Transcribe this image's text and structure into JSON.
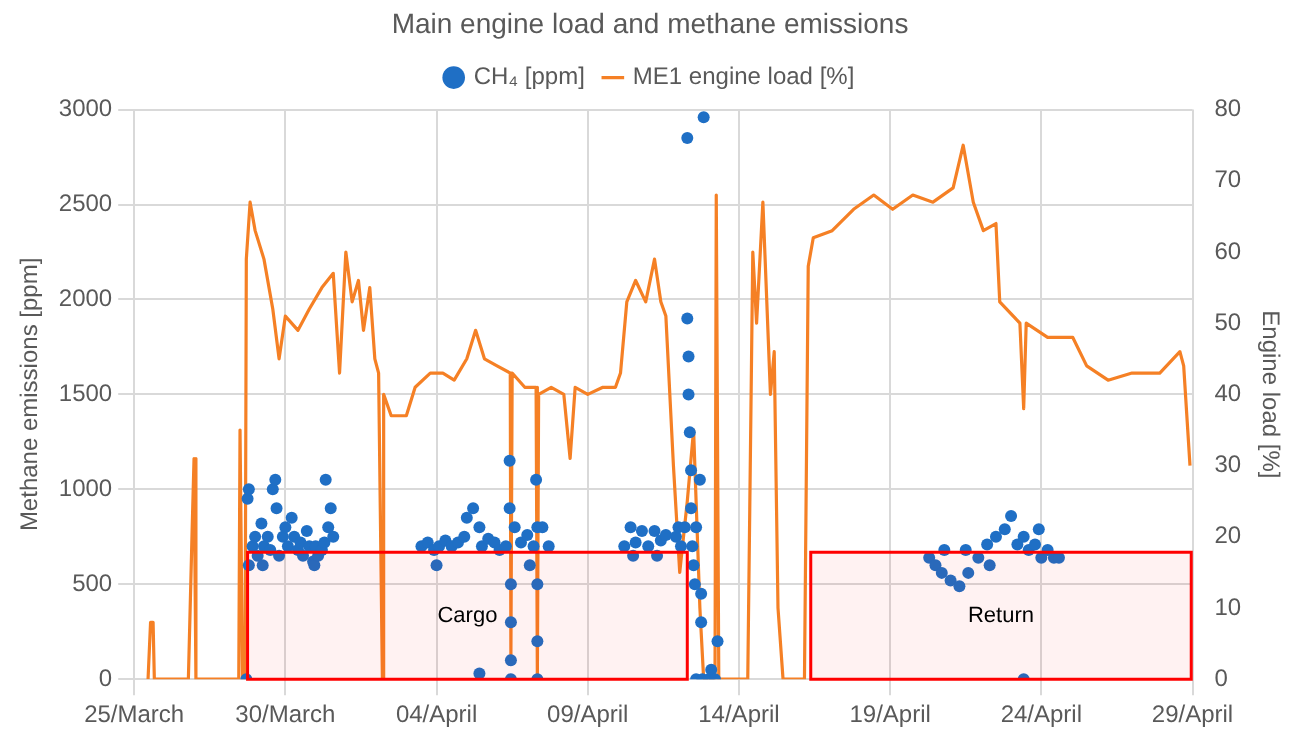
{
  "chart_data": {
    "type": "scatter",
    "title": "Main engine load and methane emissions",
    "ylabel": "Methane emissions [ppm]",
    "y2label": "Engine load [%]",
    "xlim": [
      "--03-25",
      "--04-29"
    ],
    "xticks": [
      {
        "value": "--03-25",
        "label": "25/March"
      },
      {
        "value": "--03-30",
        "label": "30/March"
      },
      {
        "value": "--04-04",
        "label": "04/April"
      },
      {
        "value": "--04-09",
        "label": "09/April"
      },
      {
        "value": "--04-14",
        "label": "14/April"
      },
      {
        "value": "--04-19",
        "label": "19/April"
      },
      {
        "value": "--04-24",
        "label": "24/April"
      },
      {
        "value": "--04-29",
        "label": "29/April"
      }
    ],
    "ylim": [
      0,
      3000
    ],
    "yticks": [
      0,
      500,
      1000,
      1500,
      2000,
      2500,
      3000
    ],
    "y2lim": [
      0,
      80
    ],
    "y2ticks": [
      0,
      10,
      20,
      30,
      40,
      50,
      60,
      70,
      80
    ],
    "grid": true,
    "legend": "top",
    "bands": [
      {
        "axis": "x",
        "from": "--03-28T18:00",
        "to": "--04-12T07:00",
        "label": "Cargo",
        "color": "#ff0000"
      },
      {
        "axis": "x",
        "from": "--04-16T09:00",
        "to": "--04-28T23:00",
        "label": "Return",
        "color": "#ff0000"
      }
    ],
    "series": [
      {
        "name": "CH₄ [ppm]",
        "marker": "circle",
        "color": "#1f6fc5",
        "x": [
          "--03-28T17:00",
          "--03-28T18:00",
          "--03-28T19:00",
          "--03-28T19:00",
          "--03-28T22:00",
          "--03-29T00:00",
          "--03-29T02:00",
          "--03-29T05:00",
          "--03-29T06:00",
          "--03-29T07:00",
          "--03-29T10:00",
          "--03-29T12:00",
          "--03-29T14:00",
          "--03-29T16:00",
          "--03-29T17:00",
          "--03-29T19:00",
          "--03-29T22:00",
          "--03-30T00:00",
          "--03-30T02:00",
          "--03-30T05:00",
          "--03-30T07:00",
          "--03-30T10:00",
          "--03-30T12:00",
          "--03-30T14:00",
          "--03-30T17:00",
          "--03-30T19:00",
          "--03-30T22:00",
          "--03-30T23:00",
          "--03-31T00:00",
          "--03-31T02:00",
          "--03-31T05:00",
          "--03-31T07:00",
          "--03-31T08:00",
          "--03-31T10:00",
          "--03-31T12:00",
          "--03-31T14:00",
          "--04-03T12:00",
          "--04-03T17:00",
          "--04-03T22:00",
          "--04-04T00:00",
          "--04-04T02:00",
          "--04-04T07:00",
          "--04-04T12:00",
          "--04-04T17:00",
          "--04-04T22:00",
          "--04-05T00:00",
          "--04-05T05:00",
          "--04-05T10:00",
          "--04-05T10:00",
          "--04-05T12:00",
          "--04-05T17:00",
          "--04-05T22:00",
          "--04-06T02:00",
          "--04-06T07:00",
          "--04-06T10:00",
          "--04-06T10:00",
          "--04-06T11:00",
          "--04-06T11:00",
          "--04-06T11:00",
          "--04-06T11:00",
          "--04-06T14:00",
          "--04-06T19:00",
          "--04-07T00:00",
          "--04-07T02:00",
          "--04-07T05:00",
          "--04-07T07:00",
          "--04-07T08:00",
          "--04-07T08:00",
          "--04-07T08:00",
          "--04-07T08:00",
          "--04-07T12:00",
          "--04-07T17:00",
          "--04-10T05:00",
          "--04-10T10:00",
          "--04-10T12:00",
          "--04-10T14:00",
          "--04-10T19:00",
          "--04-11T00:00",
          "--04-11T05:00",
          "--04-11T07:00",
          "--04-11T10:00",
          "--04-11T14:00",
          "--04-11T22:00",
          "--04-12T00:00",
          "--04-12T02:00",
          "--04-12T05:00",
          "--04-12T07:00",
          "--04-12T07:00",
          "--04-12T08:00",
          "--04-12T08:00",
          "--04-12T09:00",
          "--04-12T10:00",
          "--04-12T10:00",
          "--04-12T11:00",
          "--04-12T12:00",
          "--04-12T13:00",
          "--04-12T14:00",
          "--04-12T14:00",
          "--04-12T17:00",
          "--04-12T18:00",
          "--04-12T18:00",
          "--04-12T19:00",
          "--04-12T20:00",
          "--04-13T00:00",
          "--04-13T02:00",
          "--04-13T05:00",
          "--04-13T07:00",
          "--04-20T07:00",
          "--04-20T12:00",
          "--04-20T17:00",
          "--04-20T19:00",
          "--04-21T00:00",
          "--04-21T07:00",
          "--04-21T12:00",
          "--04-21T14:00",
          "--04-21T22:00",
          "--04-22T05:00",
          "--04-22T07:00",
          "--04-22T12:00",
          "--04-22T19:00",
          "--04-23T00:00",
          "--04-23T05:00",
          "--04-23T10:00",
          "--04-23T10:00",
          "--04-23T14:00",
          "--04-23T19:00",
          "--04-23T22:00",
          "--04-24T00:00",
          "--04-24T05:00",
          "--04-24T10:00",
          "--04-24T14:00"
        ],
        "values": [
          0,
          950,
          600,
          1000,
          700,
          750,
          650,
          820,
          600,
          700,
          750,
          680,
          1000,
          1050,
          900,
          650,
          750,
          800,
          700,
          850,
          750,
          680,
          720,
          650,
          780,
          700,
          620,
          600,
          700,
          650,
          680,
          720,
          1050,
          800,
          900,
          750,
          700,
          720,
          680,
          600,
          700,
          730,
          700,
          720,
          750,
          850,
          900,
          800,
          30,
          700,
          740,
          720,
          680,
          700,
          1150,
          900,
          500,
          0,
          300,
          100,
          800,
          720,
          760,
          600,
          700,
          1050,
          800,
          500,
          200,
          0,
          800,
          700,
          700,
          800,
          650,
          720,
          780,
          700,
          780,
          650,
          730,
          760,
          750,
          800,
          700,
          800,
          2850,
          1900,
          1700,
          1500,
          1300,
          1100,
          900,
          700,
          600,
          500,
          800,
          0,
          1050,
          300,
          450,
          0,
          2960,
          0,
          50,
          0,
          200,
          640,
          600,
          560,
          680,
          520,
          490,
          680,
          560,
          640,
          710,
          600,
          750,
          790,
          860,
          710,
          750,
          0,
          680,
          710,
          790,
          640,
          680,
          640,
          640
        ]
      },
      {
        "name": "ME1 engine load [%]",
        "type": "line",
        "axis": "y2",
        "marker": "none",
        "color": "#f58025",
        "x": [
          "--03-25T11:00",
          "--03-25T13:00",
          "--03-25T15:00",
          "--03-25T16:00",
          "--03-26T19:00",
          "--03-26T22:00",
          "--03-26T23:30",
          "--03-27T01:00",
          "--03-28T11:00",
          "--03-28T12:00",
          "--03-28T14:00",
          "--03-28T16:00",
          "--03-28T17:00",
          "--03-28T20:00",
          "--03-29T00:00",
          "--03-29T07:00",
          "--03-29T14:00",
          "--03-29T19:00",
          "--03-30T00:00",
          "--03-30T10:00",
          "--03-30T19:00",
          "--03-31T05:00",
          "--03-31T14:00",
          "--03-31T19:00",
          "--04-01T00:00",
          "--04-01T05:00",
          "--04-01T10:00",
          "--04-01T14:00",
          "--04-01T19:00",
          "--04-01T23:00",
          "--04-02T02:00",
          "--04-02T05:00",
          "--04-02T06:00",
          "--04-02T12:00",
          "--04-03T00:00",
          "--04-03T07:00",
          "--04-03T19:00",
          "--04-04T05:00",
          "--04-04T14:00",
          "--04-05T00:00",
          "--04-05T07:00",
          "--04-05T14:00",
          "--04-06T00:00",
          "--04-06T10:30",
          "--04-06T11:00",
          "--04-06T12:00",
          "--04-06T22:00",
          "--04-07T07:00",
          "--04-07T08:00",
          "--04-07T09:00",
          "--04-07T19:00",
          "--04-08T05:00",
          "--04-08T10:00",
          "--04-08T14:00",
          "--04-09T00:00",
          "--04-09T12:00",
          "--04-09T22:00",
          "--04-10T02:00",
          "--04-10T07:00",
          "--04-10T14:00",
          "--04-10T22:00",
          "--04-11T05:00",
          "--04-11T10:00",
          "--04-11T14:00",
          "--04-11T20:00",
          "--04-12T01:00",
          "--04-12T07:00",
          "--04-12T12:00",
          "--04-12T17:00",
          "--04-12T20:00",
          "--04-13T05:00",
          "--04-13T06:00",
          "--04-13T08:00",
          "--04-14T07:00",
          "--04-14T11:00",
          "--04-14T14:00",
          "--04-14T19:00",
          "--04-15T01:00",
          "--04-15T04:00",
          "--04-15T07:00",
          "--04-15T11:00",
          "--04-16T04:00",
          "--04-16T07:00",
          "--04-16T11:00",
          "--04-17T02:00",
          "--04-17T19:00",
          "--04-18T11:00",
          "--04-19T02:00",
          "--04-19T18:00",
          "--04-20T10:00",
          "--04-21T02:00",
          "--04-21T10:00",
          "--04-21T18:00",
          "--04-22T02:00",
          "--04-22T12:00",
          "--04-22T15:00",
          "--04-23T07:00",
          "--04-23T10:00",
          "--04-23T12:00",
          "--04-24T05:00",
          "--04-25T01:00",
          "--04-25T12:00",
          "--04-26T05:00",
          "--04-27T00:00",
          "--04-27T22:00",
          "--04-28T14:00",
          "--04-28T17:00",
          "--04-28T22:00"
        ],
        "values": [
          0,
          8,
          8,
          0,
          0,
          21,
          31,
          0,
          0,
          35,
          0,
          0,
          59,
          67,
          63,
          59,
          52,
          45,
          51,
          49,
          52,
          55,
          57,
          43,
          60,
          53,
          56,
          49,
          55,
          45,
          43,
          0,
          40,
          37,
          37,
          41,
          43,
          43,
          42,
          45,
          49,
          45,
          44,
          43,
          3,
          43,
          41,
          41,
          0,
          40,
          41,
          40,
          31,
          41,
          40,
          41,
          41,
          43,
          53,
          56,
          53,
          59,
          53,
          51,
          30,
          15,
          25,
          35,
          10,
          0,
          0,
          68,
          0,
          0,
          60,
          50,
          67,
          40,
          46,
          10,
          0,
          0,
          58,
          62,
          63,
          66,
          68,
          66,
          68,
          67,
          69,
          75,
          67,
          63,
          64,
          53,
          50,
          38,
          50,
          48,
          48,
          44,
          42,
          43,
          43,
          46,
          44,
          30
        ]
      }
    ]
  }
}
